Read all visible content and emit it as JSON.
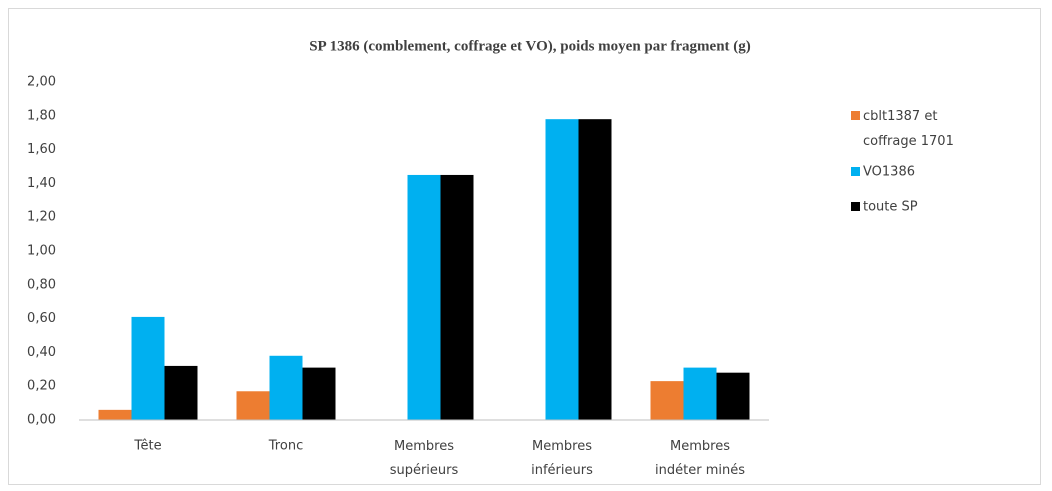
{
  "chart_data": {
    "type": "bar",
    "title": "SP 1386 (comblement,  coffrage et VO), poids moyen par fragment (g)",
    "categories": [
      "Tête",
      "Tronc",
      "Membres supérieurs",
      "Membres inférieurs",
      "Membres indéter minés"
    ],
    "series": [
      {
        "name": "cblt1387 et coffrage 1701",
        "color": "#ed7d31",
        "values": [
          0.06,
          0.17,
          0,
          0,
          0.23
        ]
      },
      {
        "name": "VO1386",
        "color": "#00b0f0",
        "values": [
          0.61,
          0.38,
          1.45,
          1.78,
          0.31
        ]
      },
      {
        "name": "toute SP",
        "color": "#000000",
        "values": [
          0.32,
          0.31,
          1.45,
          1.78,
          0.28
        ]
      }
    ],
    "ylim": [
      0,
      2
    ],
    "yticks": [
      {
        "value": 0,
        "label": "0,00"
      },
      {
        "value": 0.2,
        "label": "0,20"
      },
      {
        "value": 0.4,
        "label": "0,40"
      },
      {
        "value": 0.6,
        "label": "0,60"
      },
      {
        "value": 0.8,
        "label": "0,80"
      },
      {
        "value": 1,
        "label": "1,00"
      },
      {
        "value": 1.2,
        "label": "1,20"
      },
      {
        "value": 1.4,
        "label": "1,40"
      },
      {
        "value": 1.6,
        "label": "1,60"
      },
      {
        "value": 1.8,
        "label": "1,80"
      },
      {
        "value": 2,
        "label": "2,00"
      }
    ],
    "legend": "right"
  }
}
